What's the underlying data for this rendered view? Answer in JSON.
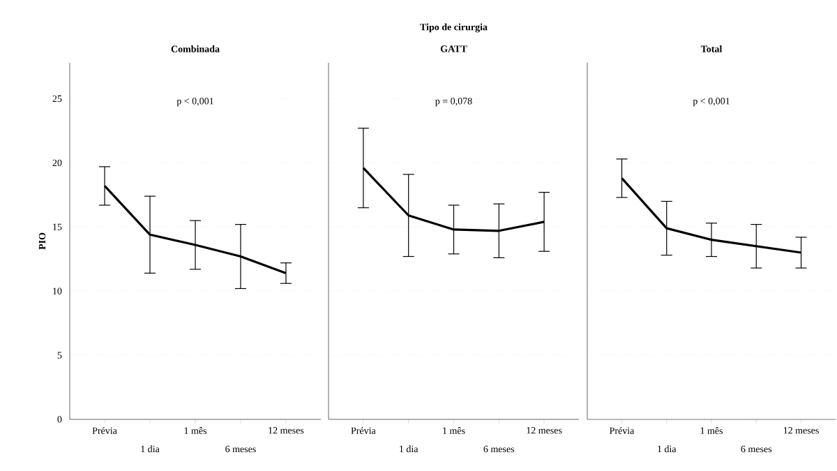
{
  "chart_data": [
    {
      "type": "line",
      "subtitle": "Combinada",
      "ylabel": "PIO",
      "categories": [
        "Prévia",
        "1 dia",
        "1 mês",
        "6 meses",
        "12 meses"
      ],
      "series": [
        {
          "color": "#000000",
          "values": [
            18.2,
            14.4,
            13.6,
            12.7,
            11.4
          ],
          "errors": [
            1.5,
            3.0,
            1.9,
            2.5,
            0.8
          ]
        }
      ],
      "ylim": [
        0,
        27.8
      ],
      "yticks": [
        0,
        5,
        10,
        15,
        20,
        25
      ],
      "grid": "y",
      "marker": "none",
      "line_style": "solid",
      "annotations": [
        "p < 0,001"
      ]
    },
    {
      "type": "line",
      "title": "Tipo de cirurgia",
      "subtitle": "GATT",
      "categories": [
        "Prévia",
        "1 dia",
        "1 mês",
        "6 meses",
        "12 meses"
      ],
      "series": [
        {
          "color": "#000000",
          "values": [
            19.6,
            15.9,
            14.8,
            14.7,
            15.4
          ],
          "errors": [
            3.1,
            3.2,
            1.9,
            2.1,
            2.3
          ]
        }
      ],
      "ylim": [
        0,
        27.8
      ],
      "yticks": [
        0,
        5,
        10,
        15,
        20,
        25
      ],
      "grid": "y",
      "marker": "none",
      "line_style": "solid",
      "tick_labels": "x",
      "annotations": [
        "p = 0,078"
      ]
    },
    {
      "type": "line",
      "subtitle": "Total",
      "categories": [
        "Prévia",
        "1 dia",
        "1 mês",
        "6 meses",
        "12 meses"
      ],
      "series": [
        {
          "color": "#000000",
          "values": [
            18.8,
            14.9,
            14.0,
            13.5,
            13.0
          ],
          "errors": [
            1.5,
            2.1,
            1.3,
            1.7,
            1.2
          ]
        }
      ],
      "ylim": [
        0,
        27.8
      ],
      "yticks": [
        0,
        5,
        10,
        15,
        20,
        25
      ],
      "grid": "y",
      "marker": "none",
      "line_style": "solid",
      "tick_labels": "x",
      "annotations": [
        "p < 0,001"
      ]
    }
  ]
}
